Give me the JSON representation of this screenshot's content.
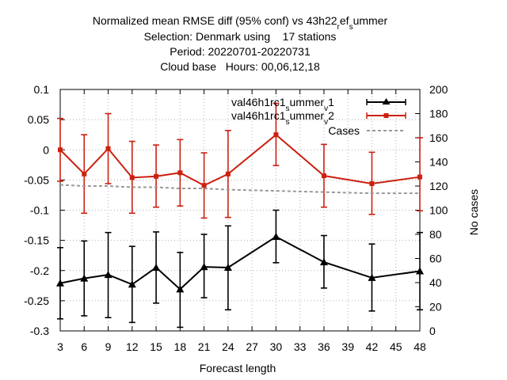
{
  "chart_data": {
    "type": "line",
    "title_lines": [
      "Normalized mean RMSE diff (95% conf) vs 43h22_ref_summer",
      "Selection: Denmark using    17 stations",
      "Period: 20220701-20220731",
      "Cloud base   Hours: 00,06,12,18"
    ],
    "xlabel": "Forecast length",
    "ylabel_right": "No cases",
    "x_ticks": [
      "3",
      "6",
      "9",
      "12",
      "15",
      "18",
      "21",
      "24",
      "27",
      "30",
      "33",
      "36",
      "39",
      "42",
      "45",
      "48"
    ],
    "y_ticks": [
      "0.1",
      "0.05",
      "0",
      "-0.05",
      "-0.1",
      "-0.15",
      "-0.2",
      "-0.25",
      "-0.3"
    ],
    "y2_ticks": [
      "200",
      "180",
      "160",
      "140",
      "120",
      "100",
      "80",
      "60",
      "40",
      "20",
      "0"
    ],
    "xlim": [
      3,
      48
    ],
    "ylim": [
      -0.3,
      0.1
    ],
    "y2lim": [
      0,
      200
    ],
    "grid": true,
    "legend_position": "top-right",
    "series": [
      {
        "name": "val46h1rc1_summer_v1",
        "color": "#000000",
        "marker": "triangle",
        "axis": "left",
        "x": [
          3,
          6,
          9,
          12,
          15,
          18,
          21,
          24,
          30,
          36,
          42,
          48
        ],
        "y": [
          -0.221,
          -0.213,
          -0.207,
          -0.223,
          -0.195,
          -0.231,
          -0.194,
          -0.195,
          -0.144,
          -0.186,
          -0.212,
          -0.201
        ],
        "err_low": [
          -0.28,
          -0.275,
          -0.278,
          -0.286,
          -0.254,
          -0.294,
          -0.245,
          -0.265,
          -0.187,
          -0.229,
          -0.267,
          -0.265
        ],
        "err_high": [
          -0.162,
          -0.151,
          -0.137,
          -0.16,
          -0.136,
          -0.17,
          -0.14,
          -0.126,
          -0.1,
          -0.142,
          -0.156,
          -0.137
        ]
      },
      {
        "name": "val46h1rc1_summer_v2",
        "color": "#cc2010",
        "marker": "star",
        "axis": "left",
        "x": [
          3,
          6,
          9,
          12,
          15,
          18,
          21,
          24,
          30,
          36,
          42,
          48
        ],
        "y": [
          0.0,
          -0.04,
          0.002,
          -0.046,
          -0.044,
          -0.038,
          -0.059,
          -0.04,
          0.025,
          -0.043,
          -0.056,
          -0.045
        ],
        "err_low": [
          -0.052,
          -0.105,
          -0.056,
          -0.105,
          -0.095,
          -0.093,
          -0.113,
          -0.112,
          -0.026,
          -0.095,
          -0.107,
          -0.101
        ],
        "err_high": [
          0.052,
          0.025,
          0.06,
          0.014,
          0.008,
          0.017,
          -0.005,
          0.032,
          0.077,
          0.009,
          -0.004,
          0.02
        ]
      },
      {
        "name": "Cases",
        "color": "#999999",
        "style": "dashed",
        "axis": "right",
        "x": [
          3,
          6,
          9,
          12,
          15,
          18,
          21,
          24,
          30,
          36,
          42,
          48
        ],
        "y": [
          121,
          120,
          120,
          119,
          119,
          118,
          118,
          117,
          116,
          115,
          114,
          114
        ]
      }
    ]
  }
}
